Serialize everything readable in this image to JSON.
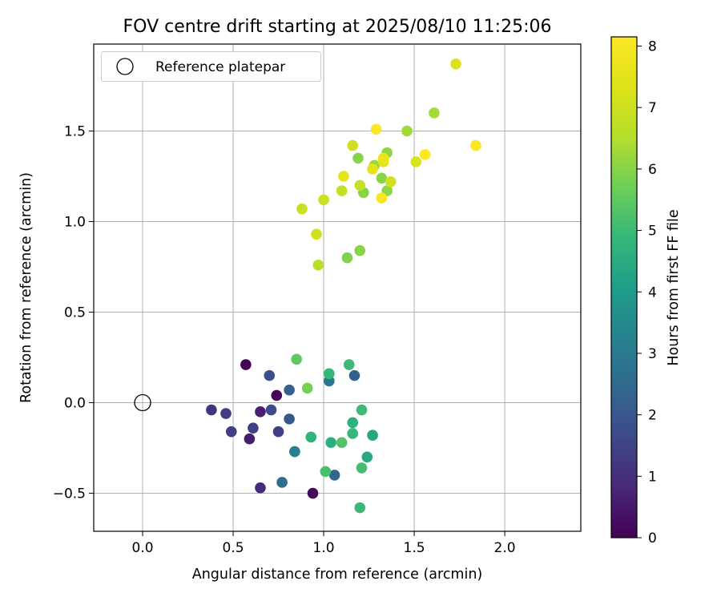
{
  "chart_data": {
    "type": "scatter",
    "title": "FOV centre drift starting at 2025/08/10 11:25:06",
    "xlabel": "Angular distance from reference (arcmin)",
    "ylabel": "Rotation from reference (arcmin)",
    "colorbar_label": "Hours from first FF file",
    "xlim": [
      -0.27,
      2.42
    ],
    "ylim": [
      -0.71,
      1.98
    ],
    "x_ticks": [
      "0.0",
      "0.5",
      "1.0",
      "1.5",
      "2.0"
    ],
    "y_ticks": [
      "−0.5",
      "0.0",
      "0.5",
      "1.0",
      "1.5"
    ],
    "x_tick_values": [
      0.0,
      0.5,
      1.0,
      1.5,
      2.0
    ],
    "y_tick_values": [
      -0.5,
      0.0,
      0.5,
      1.0,
      1.5
    ],
    "colorbar_ticks": [
      "0",
      "1",
      "2",
      "3",
      "4",
      "5",
      "6",
      "7",
      "8"
    ],
    "colorbar_tick_values": [
      0,
      1,
      2,
      3,
      4,
      5,
      6,
      7,
      8
    ],
    "colorbar_range": [
      0,
      8.15
    ],
    "colormap": "viridis",
    "grid": true,
    "legend_position": "top-left",
    "reference": {
      "label": "Reference platepar",
      "x": 0.0,
      "y": 0.0
    },
    "points": [
      {
        "x": 0.57,
        "y": 0.21,
        "c": 0.05
      },
      {
        "x": 0.74,
        "y": 0.04,
        "c": 0.1
      },
      {
        "x": 0.94,
        "y": -0.5,
        "c": 0.15
      },
      {
        "x": 0.59,
        "y": -0.2,
        "c": 0.6
      },
      {
        "x": 0.65,
        "y": -0.05,
        "c": 0.65
      },
      {
        "x": 0.65,
        "y": -0.47,
        "c": 0.9
      },
      {
        "x": 0.38,
        "y": -0.04,
        "c": 1.1
      },
      {
        "x": 0.46,
        "y": -0.06,
        "c": 1.3
      },
      {
        "x": 0.49,
        "y": -0.16,
        "c": 1.35
      },
      {
        "x": 0.61,
        "y": -0.14,
        "c": 1.4
      },
      {
        "x": 0.75,
        "y": -0.16,
        "c": 1.35
      },
      {
        "x": 0.71,
        "y": -0.04,
        "c": 1.7
      },
      {
        "x": 0.7,
        "y": 0.15,
        "c": 1.8
      },
      {
        "x": 0.81,
        "y": -0.09,
        "c": 2.05
      },
      {
        "x": 0.81,
        "y": 0.07,
        "c": 2.25
      },
      {
        "x": 0.77,
        "y": -0.44,
        "c": 2.6
      },
      {
        "x": 1.06,
        "y": -0.4,
        "c": 2.4
      },
      {
        "x": 1.17,
        "y": 0.15,
        "c": 2.3
      },
      {
        "x": 1.03,
        "y": 0.12,
        "c": 2.9
      },
      {
        "x": 0.84,
        "y": -0.27,
        "c": 3.0
      },
      {
        "x": 0.84,
        "y": -0.27,
        "c": 3.2
      },
      {
        "x": 1.27,
        "y": -0.18,
        "c": 4.35
      },
      {
        "x": 1.24,
        "y": -0.3,
        "c": 4.4
      },
      {
        "x": 1.16,
        "y": -0.11,
        "c": 4.7
      },
      {
        "x": 1.16,
        "y": -0.17,
        "c": 4.9
      },
      {
        "x": 1.04,
        "y": -0.22,
        "c": 4.6
      },
      {
        "x": 0.93,
        "y": -0.19,
        "c": 4.75
      },
      {
        "x": 1.21,
        "y": -0.04,
        "c": 5.0
      },
      {
        "x": 1.14,
        "y": 0.21,
        "c": 5.0
      },
      {
        "x": 1.03,
        "y": 0.16,
        "c": 4.9
      },
      {
        "x": 1.21,
        "y": -0.36,
        "c": 5.1
      },
      {
        "x": 1.2,
        "y": -0.58,
        "c": 4.95
      },
      {
        "x": 1.01,
        "y": -0.38,
        "c": 5.2
      },
      {
        "x": 1.1,
        "y": -0.22,
        "c": 5.3
      },
      {
        "x": 0.85,
        "y": 0.24,
        "c": 5.5
      },
      {
        "x": 0.91,
        "y": 0.08,
        "c": 5.8
      },
      {
        "x": 1.13,
        "y": 0.8,
        "c": 5.9
      },
      {
        "x": 1.2,
        "y": 0.84,
        "c": 6.0
      },
      {
        "x": 1.22,
        "y": 1.16,
        "c": 6.0
      },
      {
        "x": 1.19,
        "y": 1.35,
        "c": 6.0
      },
      {
        "x": 1.32,
        "y": 1.24,
        "c": 6.0
      },
      {
        "x": 1.35,
        "y": 1.17,
        "c": 6.1
      },
      {
        "x": 1.35,
        "y": 1.38,
        "c": 6.1
      },
      {
        "x": 1.28,
        "y": 1.31,
        "c": 6.2
      },
      {
        "x": 1.46,
        "y": 1.5,
        "c": 6.3
      },
      {
        "x": 1.61,
        "y": 1.6,
        "c": 6.3
      },
      {
        "x": 1.1,
        "y": 1.17,
        "c": 6.8
      },
      {
        "x": 1.2,
        "y": 1.2,
        "c": 6.9
      },
      {
        "x": 0.88,
        "y": 1.07,
        "c": 6.9
      },
      {
        "x": 1.0,
        "y": 1.12,
        "c": 6.95
      },
      {
        "x": 0.97,
        "y": 0.76,
        "c": 6.6
      },
      {
        "x": 0.96,
        "y": 0.93,
        "c": 7.1
      },
      {
        "x": 1.16,
        "y": 1.42,
        "c": 7.0
      },
      {
        "x": 1.37,
        "y": 1.22,
        "c": 7.05
      },
      {
        "x": 1.51,
        "y": 1.33,
        "c": 7.3
      },
      {
        "x": 1.73,
        "y": 1.87,
        "c": 7.3
      },
      {
        "x": 1.11,
        "y": 1.25,
        "c": 7.5
      },
      {
        "x": 1.27,
        "y": 1.29,
        "c": 7.55
      },
      {
        "x": 1.33,
        "y": 1.33,
        "c": 7.6
      },
      {
        "x": 1.33,
        "y": 1.35,
        "c": 7.7
      },
      {
        "x": 1.32,
        "y": 1.13,
        "c": 8.0
      },
      {
        "x": 1.29,
        "y": 1.51,
        "c": 8.1
      },
      {
        "x": 1.56,
        "y": 1.37,
        "c": 8.1
      },
      {
        "x": 1.84,
        "y": 1.42,
        "c": 8.15
      }
    ]
  }
}
